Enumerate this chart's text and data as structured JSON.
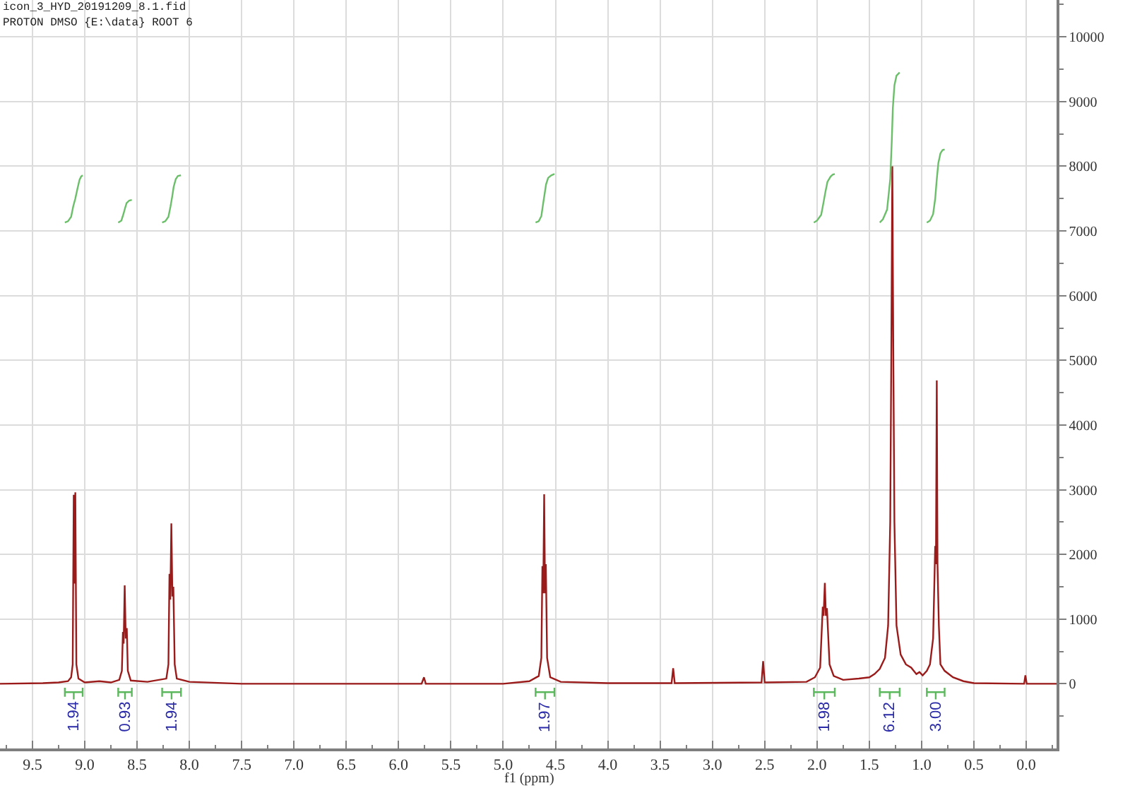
{
  "chart_data": {
    "type": "line",
    "title": "icon_3_HYD_20191209_8.1.fid",
    "subtitle": "PROTON DMSO {E:\\data} ROOT 6",
    "xlabel": "f1 (ppm)",
    "xlim": [
      9.81,
      -0.29
    ],
    "ylim": [
      -1000,
      10570
    ],
    "grid": true,
    "xticks": [
      {
        "value": 9.75,
        "label": null
      },
      {
        "value": 9.5,
        "label": "9.5"
      },
      {
        "value": 9.25,
        "label": null
      },
      {
        "value": 9.0,
        "label": "9.0"
      },
      {
        "value": 8.75,
        "label": null
      },
      {
        "value": 8.5,
        "label": "8.5"
      },
      {
        "value": 8.25,
        "label": null
      },
      {
        "value": 8.0,
        "label": "8.0"
      },
      {
        "value": 7.75,
        "label": null
      },
      {
        "value": 7.5,
        "label": "7.5"
      },
      {
        "value": 7.25,
        "label": null
      },
      {
        "value": 7.0,
        "label": "7.0"
      },
      {
        "value": 6.75,
        "label": null
      },
      {
        "value": 6.5,
        "label": "6.5"
      },
      {
        "value": 6.25,
        "label": null
      },
      {
        "value": 6.0,
        "label": "6.0"
      },
      {
        "value": 5.75,
        "label": null
      },
      {
        "value": 5.5,
        "label": "5.5"
      },
      {
        "value": 5.25,
        "label": null
      },
      {
        "value": 5.0,
        "label": "5.0"
      },
      {
        "value": 4.75,
        "label": null
      },
      {
        "value": 4.5,
        "label": "4.5"
      },
      {
        "value": 4.25,
        "label": null
      },
      {
        "value": 4.0,
        "label": "4.0"
      },
      {
        "value": 3.75,
        "label": null
      },
      {
        "value": 3.5,
        "label": "3.5"
      },
      {
        "value": 3.25,
        "label": null
      },
      {
        "value": 3.0,
        "label": "3.0"
      },
      {
        "value": 2.75,
        "label": null
      },
      {
        "value": 2.5,
        "label": "2.5"
      },
      {
        "value": 2.25,
        "label": null
      },
      {
        "value": 2.0,
        "label": "2.0"
      },
      {
        "value": 1.75,
        "label": null
      },
      {
        "value": 1.5,
        "label": "1.5"
      },
      {
        "value": 1.25,
        "label": null
      },
      {
        "value": 1.0,
        "label": "1.0"
      },
      {
        "value": 0.75,
        "label": null
      },
      {
        "value": 0.5,
        "label": "0.5"
      },
      {
        "value": 0.25,
        "label": null
      },
      {
        "value": 0.0,
        "label": "0.0"
      },
      {
        "value": -0.25,
        "label": null
      }
    ],
    "yticks": [
      {
        "value": -500,
        "label": null
      },
      0,
      {
        "value": 500,
        "label": null
      },
      1000,
      {
        "value": 1500,
        "label": null
      },
      2000,
      {
        "value": 2500,
        "label": null
      },
      3000,
      {
        "value": 3500,
        "label": null
      },
      4000,
      {
        "value": 4500,
        "label": null
      },
      5000,
      {
        "value": 5500,
        "label": null
      },
      6000,
      {
        "value": 6500,
        "label": null
      },
      7000,
      {
        "value": 7500,
        "label": null
      },
      8000,
      {
        "value": 8500,
        "label": null
      },
      9000,
      {
        "value": 9500,
        "label": null
      },
      10000,
      {
        "value": 10500,
        "label": null
      }
    ],
    "series": [
      {
        "color": "#9b1b1b",
        "x": [
          9.81,
          9.4,
          9.25,
          9.16,
          9.13,
          9.115,
          9.105,
          9.098,
          9.09,
          9.08,
          9.06,
          9.0,
          8.86,
          8.75,
          8.67,
          8.645,
          8.635,
          8.628,
          8.618,
          8.608,
          8.598,
          8.588,
          8.56,
          8.4,
          8.22,
          8.2,
          8.19,
          8.182,
          8.172,
          8.162,
          8.153,
          8.14,
          8.12,
          8.0,
          7.5,
          6.5,
          5.78,
          5.757,
          5.74,
          5.0,
          4.75,
          4.66,
          4.635,
          4.625,
          4.617,
          4.608,
          4.6,
          4.592,
          4.58,
          4.55,
          4.45,
          4.0,
          3.39,
          3.375,
          3.36,
          2.53,
          2.515,
          2.5,
          2.1,
          2.02,
          1.97,
          1.945,
          1.937,
          1.925,
          1.915,
          1.905,
          1.88,
          1.84,
          1.75,
          1.6,
          1.5,
          1.45,
          1.4,
          1.35,
          1.32,
          1.3,
          1.29,
          1.28,
          1.27,
          1.26,
          1.24,
          1.2,
          1.15,
          1.1,
          1.05,
          1.02,
          0.99,
          0.95,
          0.92,
          0.89,
          0.87,
          0.863,
          0.855,
          0.848,
          0.835,
          0.82,
          0.78,
          0.7,
          0.6,
          0.5,
          0.02,
          0.008,
          -0.005,
          -0.29
        ],
        "values": [
          0,
          10,
          20,
          40,
          100,
          300,
          2920,
          1550,
          2960,
          300,
          80,
          20,
          40,
          20,
          60,
          200,
          800,
          620,
          1520,
          700,
          860,
          200,
          50,
          30,
          80,
          300,
          1700,
          1300,
          2480,
          1350,
          1500,
          300,
          80,
          30,
          0,
          0,
          0,
          100,
          0,
          0,
          40,
          120,
          400,
          1820,
          1400,
          2930,
          1400,
          1850,
          400,
          100,
          30,
          10,
          10,
          240,
          10,
          20,
          350,
          20,
          30,
          100,
          250,
          1190,
          1050,
          1560,
          1050,
          1170,
          300,
          120,
          60,
          80,
          100,
          150,
          230,
          400,
          900,
          2500,
          5000,
          8000,
          5000,
          2500,
          900,
          450,
          300,
          250,
          150,
          180,
          130,
          200,
          300,
          700,
          2130,
          1850,
          4690,
          1850,
          900,
          300,
          200,
          100,
          40,
          10,
          0,
          130,
          0,
          0
        ]
      },
      {
        "type": "line",
        "color": "#6cbf6a",
        "x": [
          9.19,
          9.16,
          9.13,
          9.11,
          9.09,
          9.07,
          9.05,
          9.035,
          9.02,
          null,
          8.68,
          8.65,
          8.63,
          8.615,
          8.6,
          8.575,
          8.55,
          null,
          8.26,
          8.23,
          8.2,
          8.18,
          8.165,
          8.15,
          8.13,
          8.11,
          8.08,
          null,
          4.69,
          4.66,
          4.635,
          4.62,
          4.605,
          4.59,
          4.57,
          4.54,
          4.51,
          null,
          2.03,
          2.0,
          1.96,
          1.94,
          1.92,
          1.9,
          1.87,
          1.85,
          1.83,
          null,
          1.4,
          1.37,
          1.33,
          1.3,
          1.285,
          1.275,
          1.26,
          1.24,
          1.21,
          null,
          0.95,
          0.92,
          0.89,
          0.87,
          0.855,
          0.84,
          0.82,
          0.8,
          0.78
        ],
        "values": [
          7130,
          7150,
          7220,
          7380,
          7500,
          7650,
          7790,
          7840,
          7860,
          null,
          7130,
          7160,
          7260,
          7350,
          7430,
          7470,
          7480,
          null,
          7130,
          7150,
          7220,
          7380,
          7520,
          7680,
          7800,
          7850,
          7860,
          null,
          7130,
          7150,
          7230,
          7400,
          7560,
          7720,
          7820,
          7860,
          7880,
          null,
          7130,
          7160,
          7250,
          7420,
          7600,
          7760,
          7840,
          7870,
          7880,
          null,
          7130,
          7180,
          7330,
          7800,
          8400,
          8900,
          9250,
          9400,
          9450,
          null,
          7130,
          7160,
          7260,
          7500,
          7800,
          8050,
          8200,
          8250,
          8260
        ]
      },
      {
        "type": "line",
        "color": "#5cb85c",
        "x": [
          9.19,
          9.19,
          9.19,
          9.105,
          9.105,
          9.105,
          9.02,
          9.02,
          9.02,
          null,
          8.68,
          8.68,
          8.68,
          8.615,
          8.615,
          8.615,
          8.55,
          8.55,
          8.55,
          null,
          8.26,
          8.26,
          8.26,
          8.17,
          8.17,
          8.17,
          8.08,
          8.08,
          8.08,
          null,
          4.69,
          4.69,
          4.69,
          4.6,
          4.6,
          4.6,
          4.51,
          4.51,
          4.51,
          null,
          2.03,
          2.03,
          2.03,
          1.93,
          1.93,
          1.93,
          1.83,
          1.83,
          1.83,
          null,
          1.4,
          1.4,
          1.4,
          1.305,
          1.305,
          1.305,
          1.21,
          1.21,
          1.21,
          null,
          0.95,
          0.95,
          0.95,
          0.865,
          0.865,
          0.865,
          0.78,
          0.78,
          0.78
        ],
        "values": [
          -60,
          -200,
          -130,
          -130,
          -240,
          -130,
          -130,
          -60,
          -200,
          null,
          -60,
          -200,
          -130,
          -130,
          -240,
          -130,
          -130,
          -60,
          -200,
          null,
          -60,
          -200,
          -130,
          -130,
          -240,
          -130,
          -130,
          -60,
          -200,
          null,
          -60,
          -200,
          -130,
          -130,
          -240,
          -130,
          -130,
          -60,
          -200,
          null,
          -60,
          -200,
          -130,
          -130,
          -240,
          -130,
          -130,
          -60,
          -200,
          null,
          -60,
          -200,
          -130,
          -130,
          -240,
          -130,
          -130,
          -60,
          -200,
          null,
          -60,
          -200,
          -130,
          -130,
          -240,
          -130,
          -130,
          -60,
          -200
        ]
      }
    ],
    "annotations": [
      {
        "text": "1.94",
        "x": 9.105,
        "y": -240
      },
      {
        "text": "0.93",
        "x": 8.615,
        "y": -240
      },
      {
        "text": "1.94",
        "x": 8.17,
        "y": -240
      },
      {
        "text": "1.97",
        "x": 4.6,
        "y": -240
      },
      {
        "text": "1.98",
        "x": 1.93,
        "y": -240
      },
      {
        "text": "6.12",
        "x": 1.305,
        "y": -240
      },
      {
        "text": "3.00",
        "x": 0.865,
        "y": -240
      }
    ]
  }
}
